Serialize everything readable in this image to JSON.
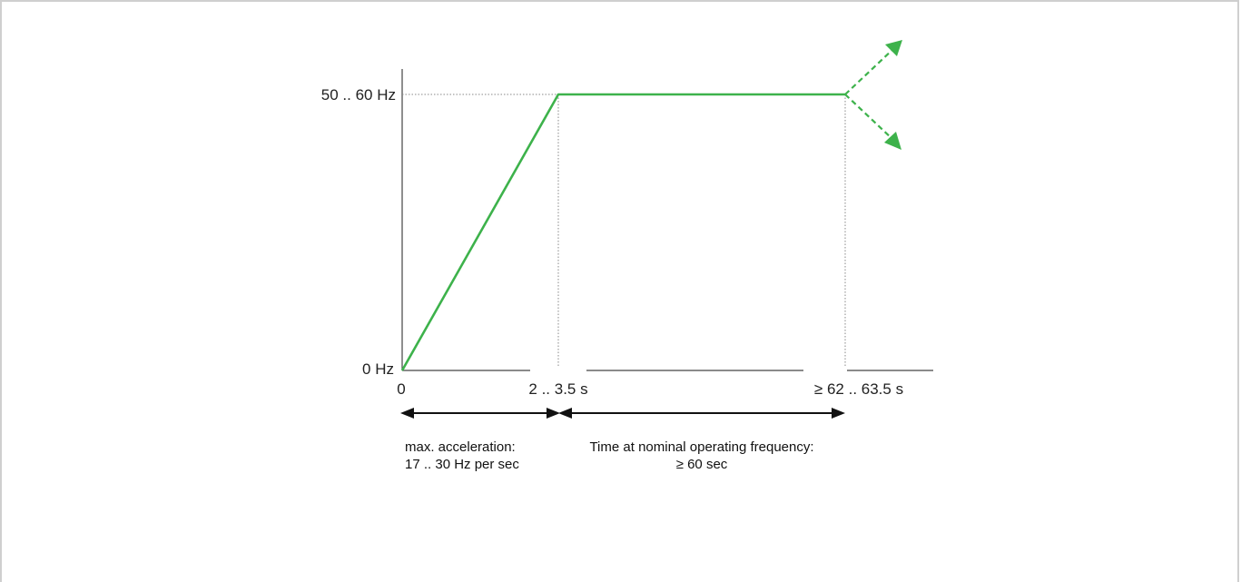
{
  "y_axis": {
    "top_label": "50 .. 60 Hz",
    "bottom_label": "0 Hz"
  },
  "x_axis": {
    "origin_label": "0",
    "ramp_end_label": "2 .. 3.5 s",
    "plateau_end_label": "≥ 62 .. 63.5 s"
  },
  "annotations": {
    "acceleration_line1": "max. acceleration:",
    "acceleration_line2": "17 .. 30 Hz per sec",
    "nominal_line1": "Time at nominal operating frequency:",
    "nominal_line2": "≥ 60 sec"
  },
  "colors": {
    "curve": "#3db24b",
    "axis": "#444444",
    "guide": "#888888",
    "arrow": "#111111"
  }
}
